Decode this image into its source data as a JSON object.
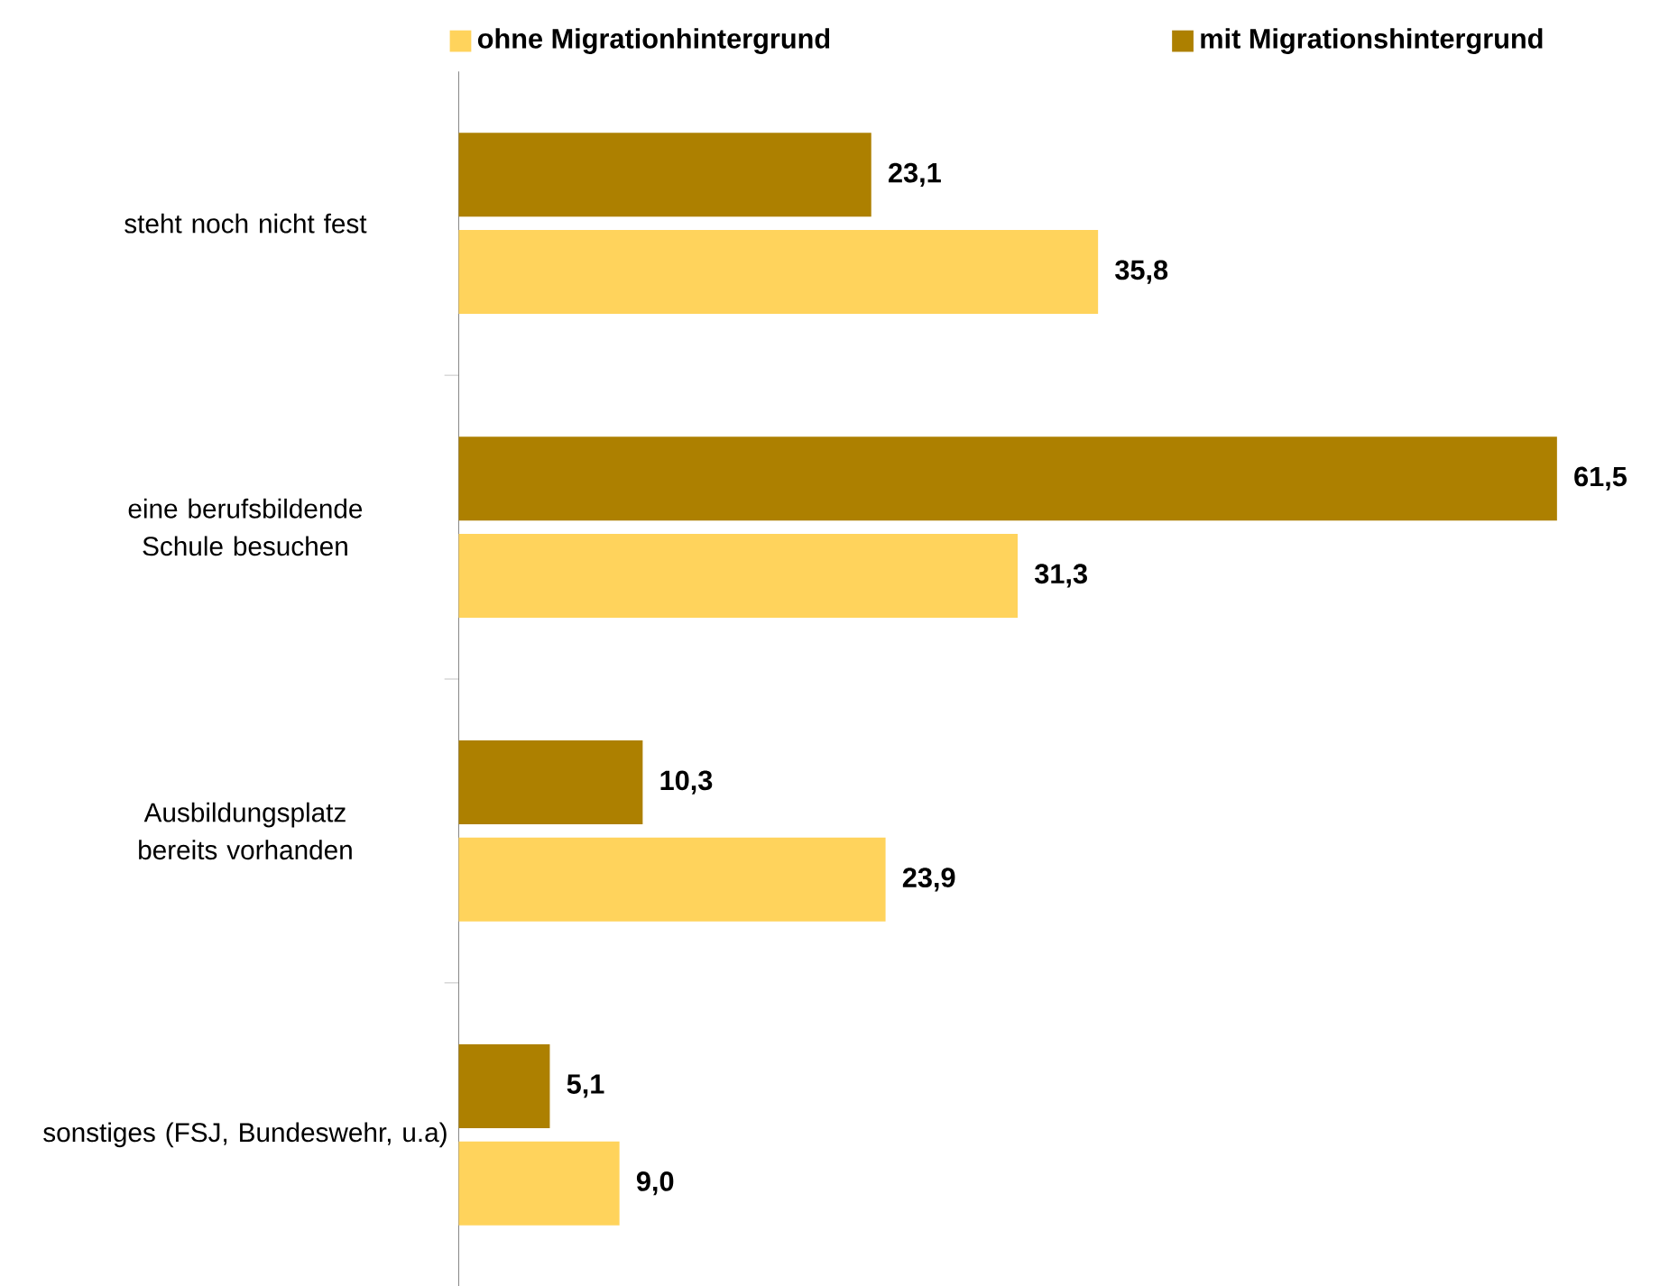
{
  "chart_data": {
    "type": "bar",
    "orientation": "horizontal",
    "categories": [
      "steht noch nicht fest",
      "eine berufsbildende Schule besuchen",
      "Ausbildungsplatz bereits vorhanden",
      "sonstiges (FSJ, Bundeswehr, u.a)"
    ],
    "series": [
      {
        "name": "ohne Migrationhintergrund",
        "color": "#ffd35c",
        "values": [
          35.8,
          31.3,
          23.9,
          9.0
        ],
        "value_labels": [
          "35,8",
          "31,3",
          "23,9",
          "9,0"
        ]
      },
      {
        "name": "mit Migrationshintergrund",
        "color": "#ad8000",
        "values": [
          23.1,
          61.5,
          10.3,
          5.1
        ],
        "value_labels": [
          "23,1",
          "61,5",
          "10,3",
          "5,1"
        ]
      }
    ],
    "legend": "top right"
  }
}
